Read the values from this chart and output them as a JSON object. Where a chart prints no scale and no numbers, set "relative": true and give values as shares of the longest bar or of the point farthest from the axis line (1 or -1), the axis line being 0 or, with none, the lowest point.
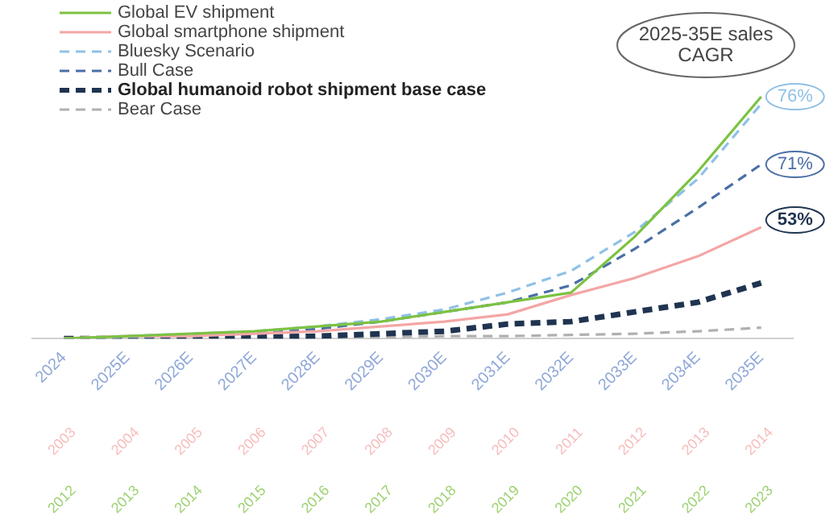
{
  "chart_data": {
    "type": "line",
    "relative": true,
    "legend": "top left",
    "grid": false,
    "marker": "none",
    "categories": [
      "2024",
      "2025E",
      "2026E",
      "2027E",
      "2028E",
      "2029E",
      "2030E",
      "2031E",
      "2032E",
      "2033E",
      "2034E",
      "2035E"
    ],
    "series": [
      {
        "name": "Global EV shipment",
        "color": "#7cc242",
        "line_style": "solid",
        "values": [
          0,
          0.01,
          0.02,
          0.03,
          0.05,
          0.07,
          0.11,
          0.15,
          0.19,
          0.42,
          0.69,
          1
        ]
      },
      {
        "name": "Global smartphone shipment",
        "color": "#f4a6a6",
        "line_style": "solid",
        "values": [
          0,
          0.01,
          0.01,
          0.02,
          0.03,
          0.05,
          0.07,
          0.1,
          0.18,
          0.25,
          0.34,
          0.46
        ]
      },
      {
        "name": "Bluesky Scenario",
        "color": "#8fc1e6",
        "line_style": "dashed",
        "values": [
          0,
          0.01,
          0.02,
          0.03,
          0.05,
          0.08,
          0.12,
          0.19,
          0.28,
          0.44,
          0.66,
          0.97
        ]
      },
      {
        "name": "Bull Case",
        "color": "#4a6fa5",
        "line_style": "dashed",
        "values": [
          0,
          0.005,
          0.01,
          0.02,
          0.04,
          0.07,
          0.11,
          0.15,
          0.22,
          0.37,
          0.54,
          0.72
        ]
      },
      {
        "name": "Global humanoid robot shipment base case",
        "color": "#1f3450",
        "line_style": "dashed",
        "values": [
          0,
          0,
          0,
          0.005,
          0.01,
          0.02,
          0.03,
          0.06,
          0.07,
          0.11,
          0.15,
          0.23
        ]
      },
      {
        "name": "Bear Case",
        "color": "#b0b0b0",
        "line_style": "dashed",
        "values": [
          0,
          0,
          0,
          0,
          0,
          0.005,
          0.01,
          0.01,
          0.015,
          0.02,
          0.03,
          0.045
        ]
      }
    ],
    "annotations": [
      "2025-35E sales CAGR",
      {
        "text": "76%",
        "x": "2035E",
        "y": 1
      },
      {
        "text": "71%",
        "x": "2035E",
        "y": 0.72
      },
      {
        "text": "53%",
        "x": "2035E",
        "y": 0.49
      },
      "2003",
      "2004",
      "2005",
      "2006",
      "2007",
      "2008",
      "2009",
      "2010",
      "2011",
      "2012",
      "2013",
      "2014",
      "2012",
      "2013",
      "2014",
      "2015",
      "2016",
      "2017",
      "2018",
      "2019",
      "2020",
      "2021",
      "2022",
      "2023"
    ]
  }
}
